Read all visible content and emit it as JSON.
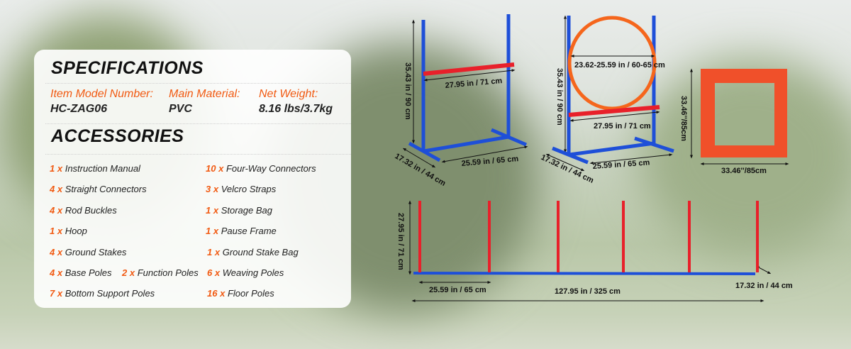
{
  "specifications": {
    "title": "SPECIFICATIONS",
    "fields": [
      {
        "label": "Item Model Number:",
        "value": "HC-ZAG06"
      },
      {
        "label": "Main Material:",
        "value": "PVC"
      },
      {
        "label": "Net Weight:",
        "value": "8.16 lbs/3.7kg"
      }
    ]
  },
  "accessories": {
    "title": "ACCESSORIES",
    "items": [
      {
        "qty": "1",
        "x": "x",
        "name": "Instruction Manual"
      },
      {
        "qty": "10",
        "x": "x",
        "name": "Four-Way Connectors"
      },
      {
        "qty": "4",
        "x": "x",
        "name": "Straight Connectors"
      },
      {
        "qty": "3",
        "x": "x",
        "name": "Velcro Straps"
      },
      {
        "qty": "4",
        "x": "x",
        "name": "Rod Buckles"
      },
      {
        "qty": "1",
        "x": "x",
        "name": "Storage Bag"
      },
      {
        "qty": "1",
        "x": "x",
        "name": "Hoop"
      },
      {
        "qty": "1",
        "x": "x",
        "name": "Pause Frame"
      },
      {
        "qty": "4",
        "x": "x",
        "name": "Ground Stakes"
      },
      {
        "qty": "1",
        "x": "x",
        "name": "Ground Stake Bag"
      },
      {
        "qty": "4",
        "x": "x",
        "name": "Base Poles"
      },
      {
        "qty": "2",
        "x": "x",
        "name": "Function Poles"
      },
      {
        "qty": "6",
        "x": "x",
        "name": "Weaving Poles"
      },
      {
        "qty": "7",
        "x": "x",
        "name": "Bottom Support Poles"
      },
      {
        "qty": "16",
        "x": "x",
        "name": "Floor Poles"
      }
    ]
  },
  "dimensions": {
    "jump_height": "35.43 in / 90 cm",
    "jump_bar": "27.95 in / 71 cm",
    "jump_base": "25.59 in / 65 cm",
    "jump_depth": "17.32 in / 44 cm",
    "hoop_height": "35.43 in / 90 cm",
    "hoop_diameter": "23.62-25.59 in / 60-65 cm",
    "hoop_bar": "27.95 in / 71 cm",
    "hoop_base": "25.59 in / 65 cm",
    "hoop_depth": "17.32 in / 44 cm",
    "frame_height": "33.46''/85cm",
    "frame_width": "33.46''/85cm",
    "weave_height": "27.95 in / 71 cm",
    "weave_spacing": "25.59 in / 65 cm",
    "weave_length": "127.95 in / 325 cm",
    "weave_depth": "17.32 in / 44 cm"
  },
  "colors": {
    "accent": "#f15a12",
    "pole_blue": "#1e4fd8",
    "bar_red": "#e8202a",
    "hoop_orange": "#f5661c"
  }
}
